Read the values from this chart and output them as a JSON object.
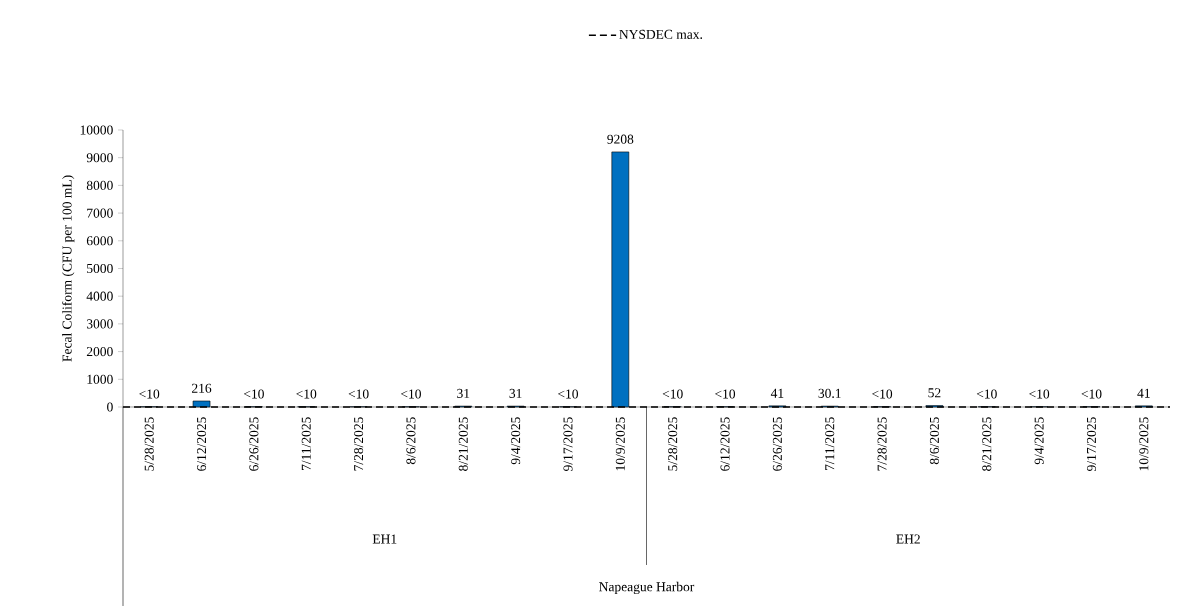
{
  "chart_data": {
    "type": "bar",
    "ylabel": "Fecal Coliform (CFU per 100 mL)",
    "categories": [
      "5/28/2025",
      "6/12/2025",
      "6/26/2025",
      "7/11/2025",
      "7/28/2025",
      "8/6/2025",
      "8/21/2025",
      "9/4/2025",
      "9/17/2025",
      "10/9/2025",
      "5/28/2025",
      "6/12/2025",
      "6/26/2025",
      "7/11/2025",
      "7/28/2025",
      "8/6/2025",
      "8/21/2025",
      "9/4/2025",
      "9/17/2025",
      "10/9/2025"
    ],
    "values": [
      10,
      216,
      10,
      10,
      10,
      10,
      31,
      31,
      10,
      9208,
      10,
      10,
      41,
      30.1,
      10,
      52,
      10,
      10,
      10,
      41
    ],
    "value_labels": [
      "<10",
      "216",
      "<10",
      "<10",
      "<10",
      "<10",
      "31",
      "31",
      "<10",
      "9208",
      "<10",
      "<10",
      "41",
      "30.1",
      "<10",
      "52",
      "<10",
      "<10",
      "<10",
      "41"
    ],
    "color": "#0070c0",
    "ylim": [
      0,
      10000
    ],
    "yticks": [
      0,
      1000,
      2000,
      3000,
      4000,
      5000,
      6000,
      7000,
      8000,
      9000,
      10000
    ],
    "ref_lines": [
      {
        "axis": "y",
        "value": 0,
        "label": "NYSDEC max.",
        "color": "#000000",
        "line_style": "dashed"
      }
    ],
    "legend": "top",
    "grid": false,
    "annotations": [
      "EH1",
      "EH2",
      "Napeague Harbor"
    ]
  }
}
